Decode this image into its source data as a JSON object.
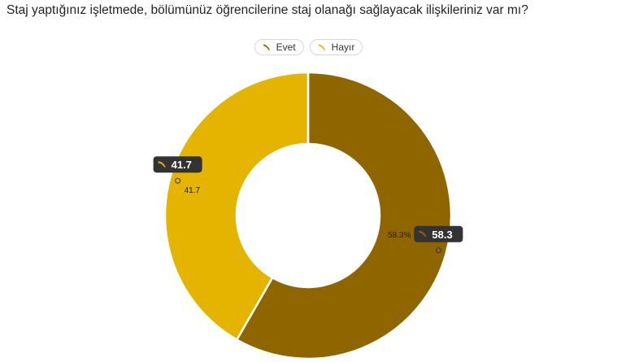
{
  "title": "Staj yaptığınız işletmede, bölümünüz öğrencilerine staj olanağı sağlayacak ilişkileriniz var mı?",
  "legend": [
    {
      "label": "Evet",
      "color": "#8f6500",
      "icon": "banana-icon"
    },
    {
      "label": "Hayır",
      "color": "#e5b400",
      "icon": "banana-icon"
    }
  ],
  "chart_data": {
    "type": "pie",
    "donut": true,
    "title": "Staj yaptığınız işletmede, bölümünüz öğrencilerine staj olanağı sağlayacak ilişkileriniz var mı?",
    "slices": [
      {
        "name": "Evet",
        "value": 58.3,
        "color": "#8f6500",
        "tooltip": "58.3",
        "outer_label": "58.3%"
      },
      {
        "name": "Hayır",
        "value": 41.7,
        "color": "#e5b400",
        "tooltip": "41.7",
        "outer_label": "41.7"
      }
    ],
    "legend_position": "top-center"
  }
}
